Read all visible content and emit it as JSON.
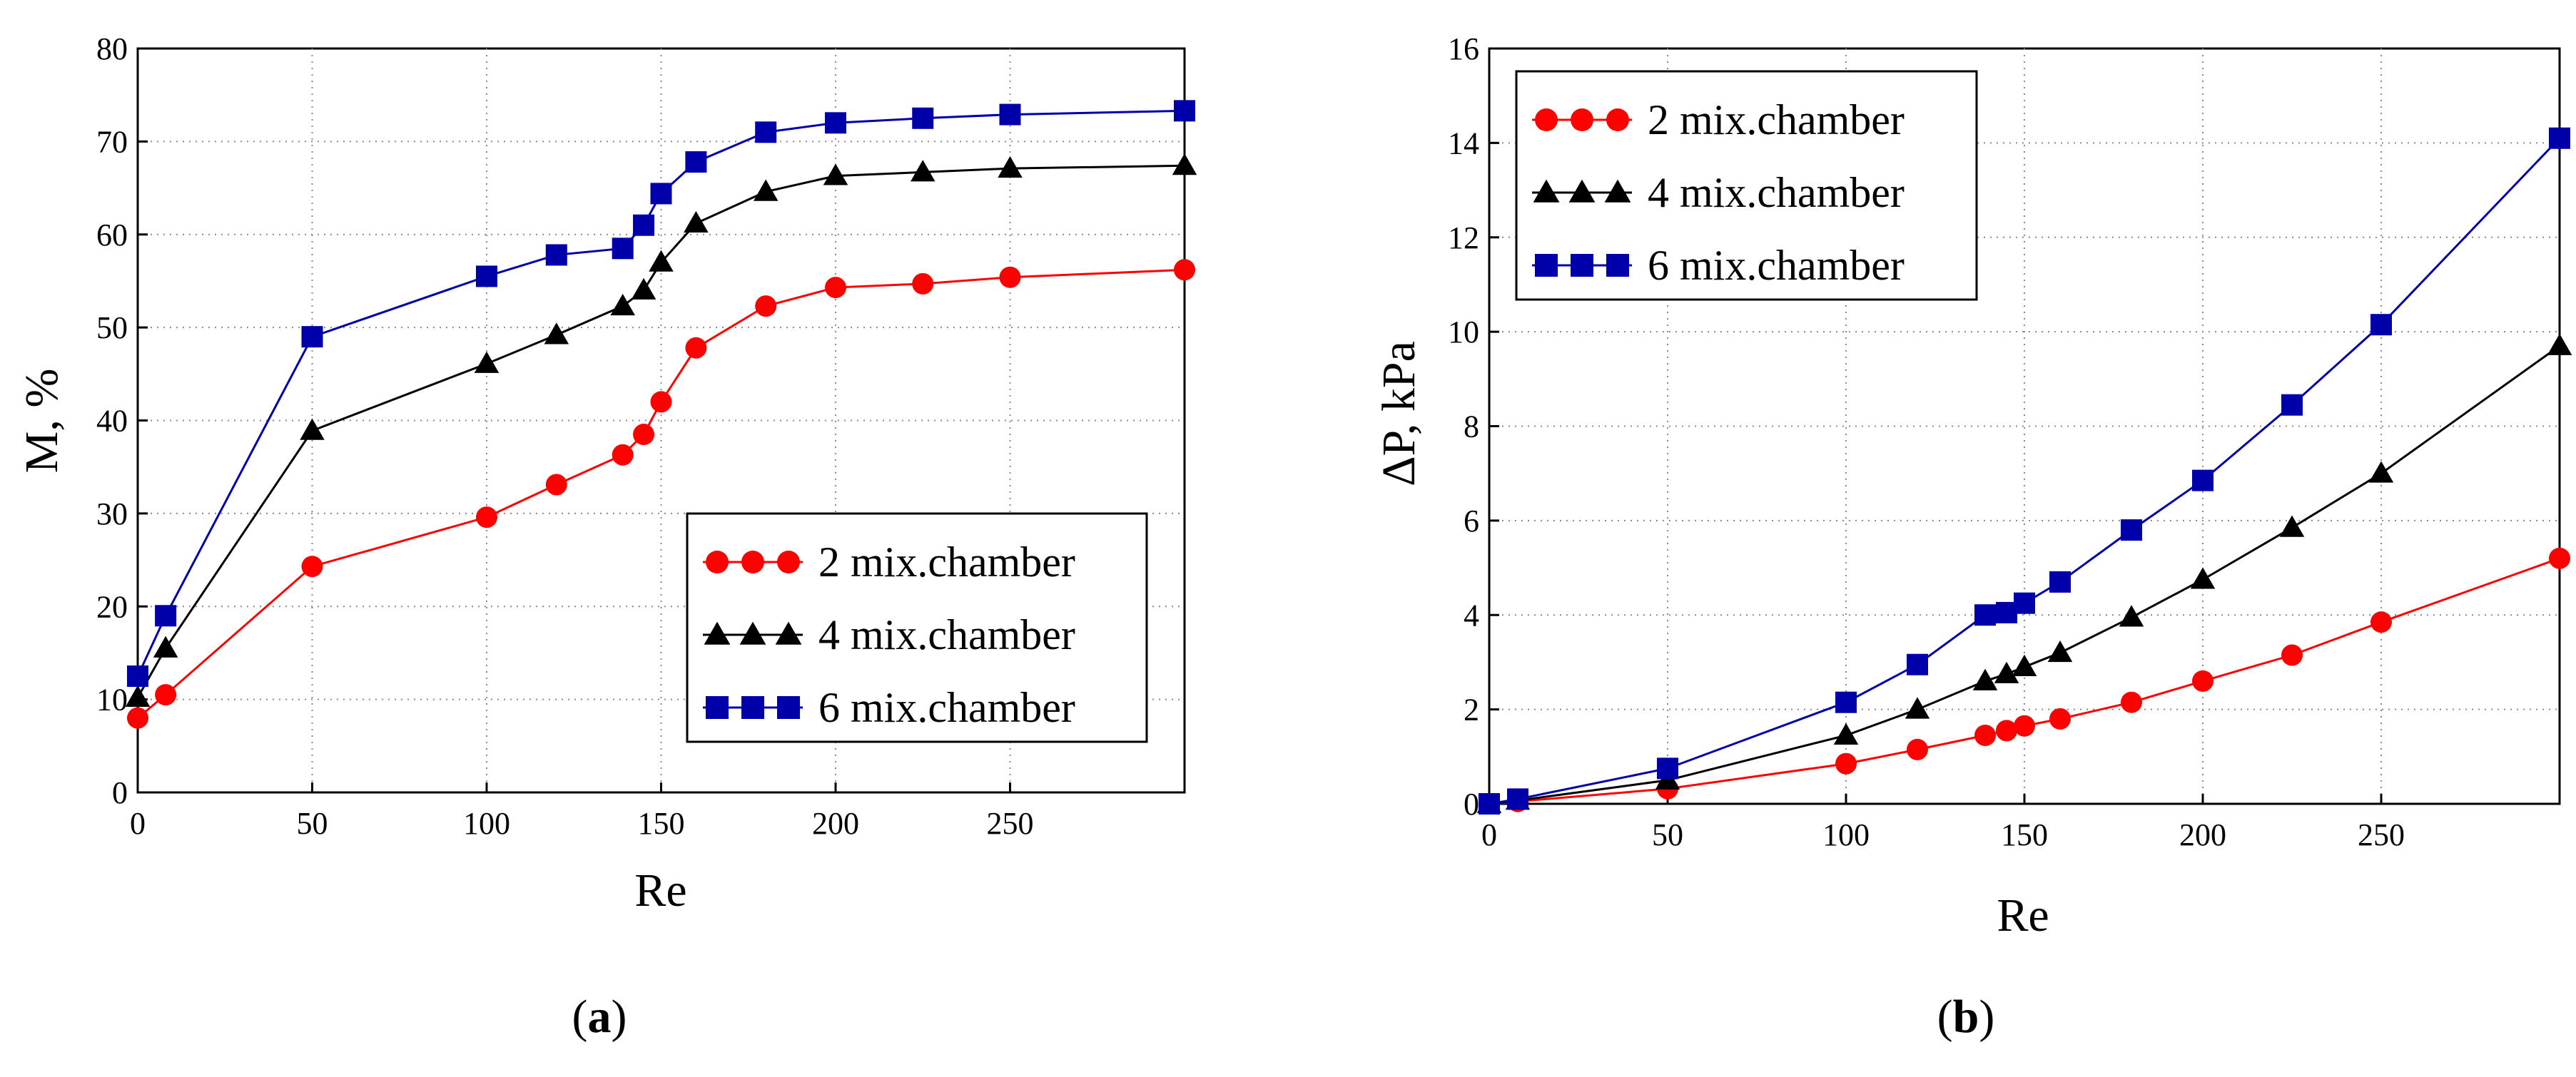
{
  "chart_data": [
    {
      "panel": "a",
      "type": "line",
      "caption": {
        "open": "(",
        "letter": "a",
        "close": ")"
      },
      "xlabel": "Re",
      "ylabel": "M, %",
      "xlim": [
        0,
        300
      ],
      "ylim": [
        0,
        80
      ],
      "xticks": [
        0,
        50,
        100,
        150,
        200,
        250
      ],
      "yticks": [
        0,
        10,
        20,
        30,
        40,
        50,
        60,
        70,
        80
      ],
      "legend_position": "bottom-right",
      "series": [
        {
          "name": "2 mix.chamber",
          "legend": "2 mix.chamber",
          "color": "#ff0000",
          "marker": "circle",
          "x": [
            0,
            8,
            50,
            100,
            120,
            139,
            145,
            150,
            160,
            180,
            200,
            225,
            250,
            300
          ],
          "y": [
            8,
            10.5,
            24.3,
            29.6,
            33.1,
            36.3,
            38.5,
            42,
            47.8,
            52.3,
            54.3,
            54.7,
            55.4,
            56.2
          ]
        },
        {
          "name": "4 mix.chamber",
          "legend": "4 mix.chamber",
          "color": "#000000",
          "marker": "triangle",
          "x": [
            0,
            8,
            50,
            100,
            120,
            139,
            145,
            150,
            160,
            180,
            200,
            225,
            250,
            300
          ],
          "y": [
            10.2,
            15.5,
            38.9,
            46.1,
            49.2,
            52.3,
            54,
            57,
            61.2,
            64.6,
            66.3,
            66.7,
            67.1,
            67.4
          ]
        },
        {
          "name": "6 mix.chamber",
          "legend": "6 mix.chamber",
          "color": "#0000aa",
          "marker": "square",
          "x": [
            0,
            8,
            50,
            100,
            120,
            139,
            145,
            150,
            160,
            180,
            200,
            225,
            250,
            300
          ],
          "y": [
            12.5,
            19,
            49,
            55.5,
            57.8,
            58.5,
            61,
            64.4,
            67.8,
            71,
            72,
            72.5,
            72.9,
            73.3
          ]
        }
      ]
    },
    {
      "panel": "b",
      "type": "line",
      "caption": {
        "open": "(",
        "letter": "b",
        "close": ")"
      },
      "xlabel": "Re",
      "ylabel": "ΔP, kPa",
      "xlim": [
        0,
        300
      ],
      "ylim": [
        0,
        16
      ],
      "xticks": [
        0,
        50,
        100,
        150,
        200,
        250
      ],
      "yticks": [
        0,
        2,
        4,
        6,
        8,
        10,
        12,
        14,
        16
      ],
      "legend_position": "top-left",
      "series": [
        {
          "name": "2 mix.chamber",
          "legend": "2 mix.chamber",
          "color": "#ff0000",
          "marker": "circle",
          "x": [
            0,
            8,
            50,
            100,
            120,
            139,
            145,
            150,
            160,
            180,
            200,
            225,
            250,
            300
          ],
          "y": [
            0,
            0.05,
            0.32,
            0.85,
            1.15,
            1.45,
            1.55,
            1.65,
            1.8,
            2.15,
            2.6,
            3.15,
            3.85,
            5.2
          ]
        },
        {
          "name": "4 mix.chamber",
          "legend": "4 mix.chamber",
          "color": "#000000",
          "marker": "triangle",
          "x": [
            0,
            8,
            50,
            100,
            120,
            139,
            145,
            150,
            160,
            180,
            200,
            225,
            250,
            300
          ],
          "y": [
            0,
            0.07,
            0.5,
            1.45,
            2.0,
            2.6,
            2.75,
            2.9,
            3.2,
            3.95,
            4.75,
            5.85,
            7.0,
            9.7
          ]
        },
        {
          "name": "6 mix.chamber",
          "legend": "6 mix.chamber",
          "color": "#0000aa",
          "marker": "square",
          "x": [
            0,
            8,
            50,
            100,
            120,
            139,
            145,
            150,
            160,
            180,
            200,
            225,
            250,
            300
          ],
          "y": [
            0,
            0.1,
            0.75,
            2.15,
            2.95,
            4.0,
            4.05,
            4.25,
            4.7,
            5.8,
            6.85,
            8.45,
            10.15,
            14.1
          ]
        }
      ]
    }
  ]
}
